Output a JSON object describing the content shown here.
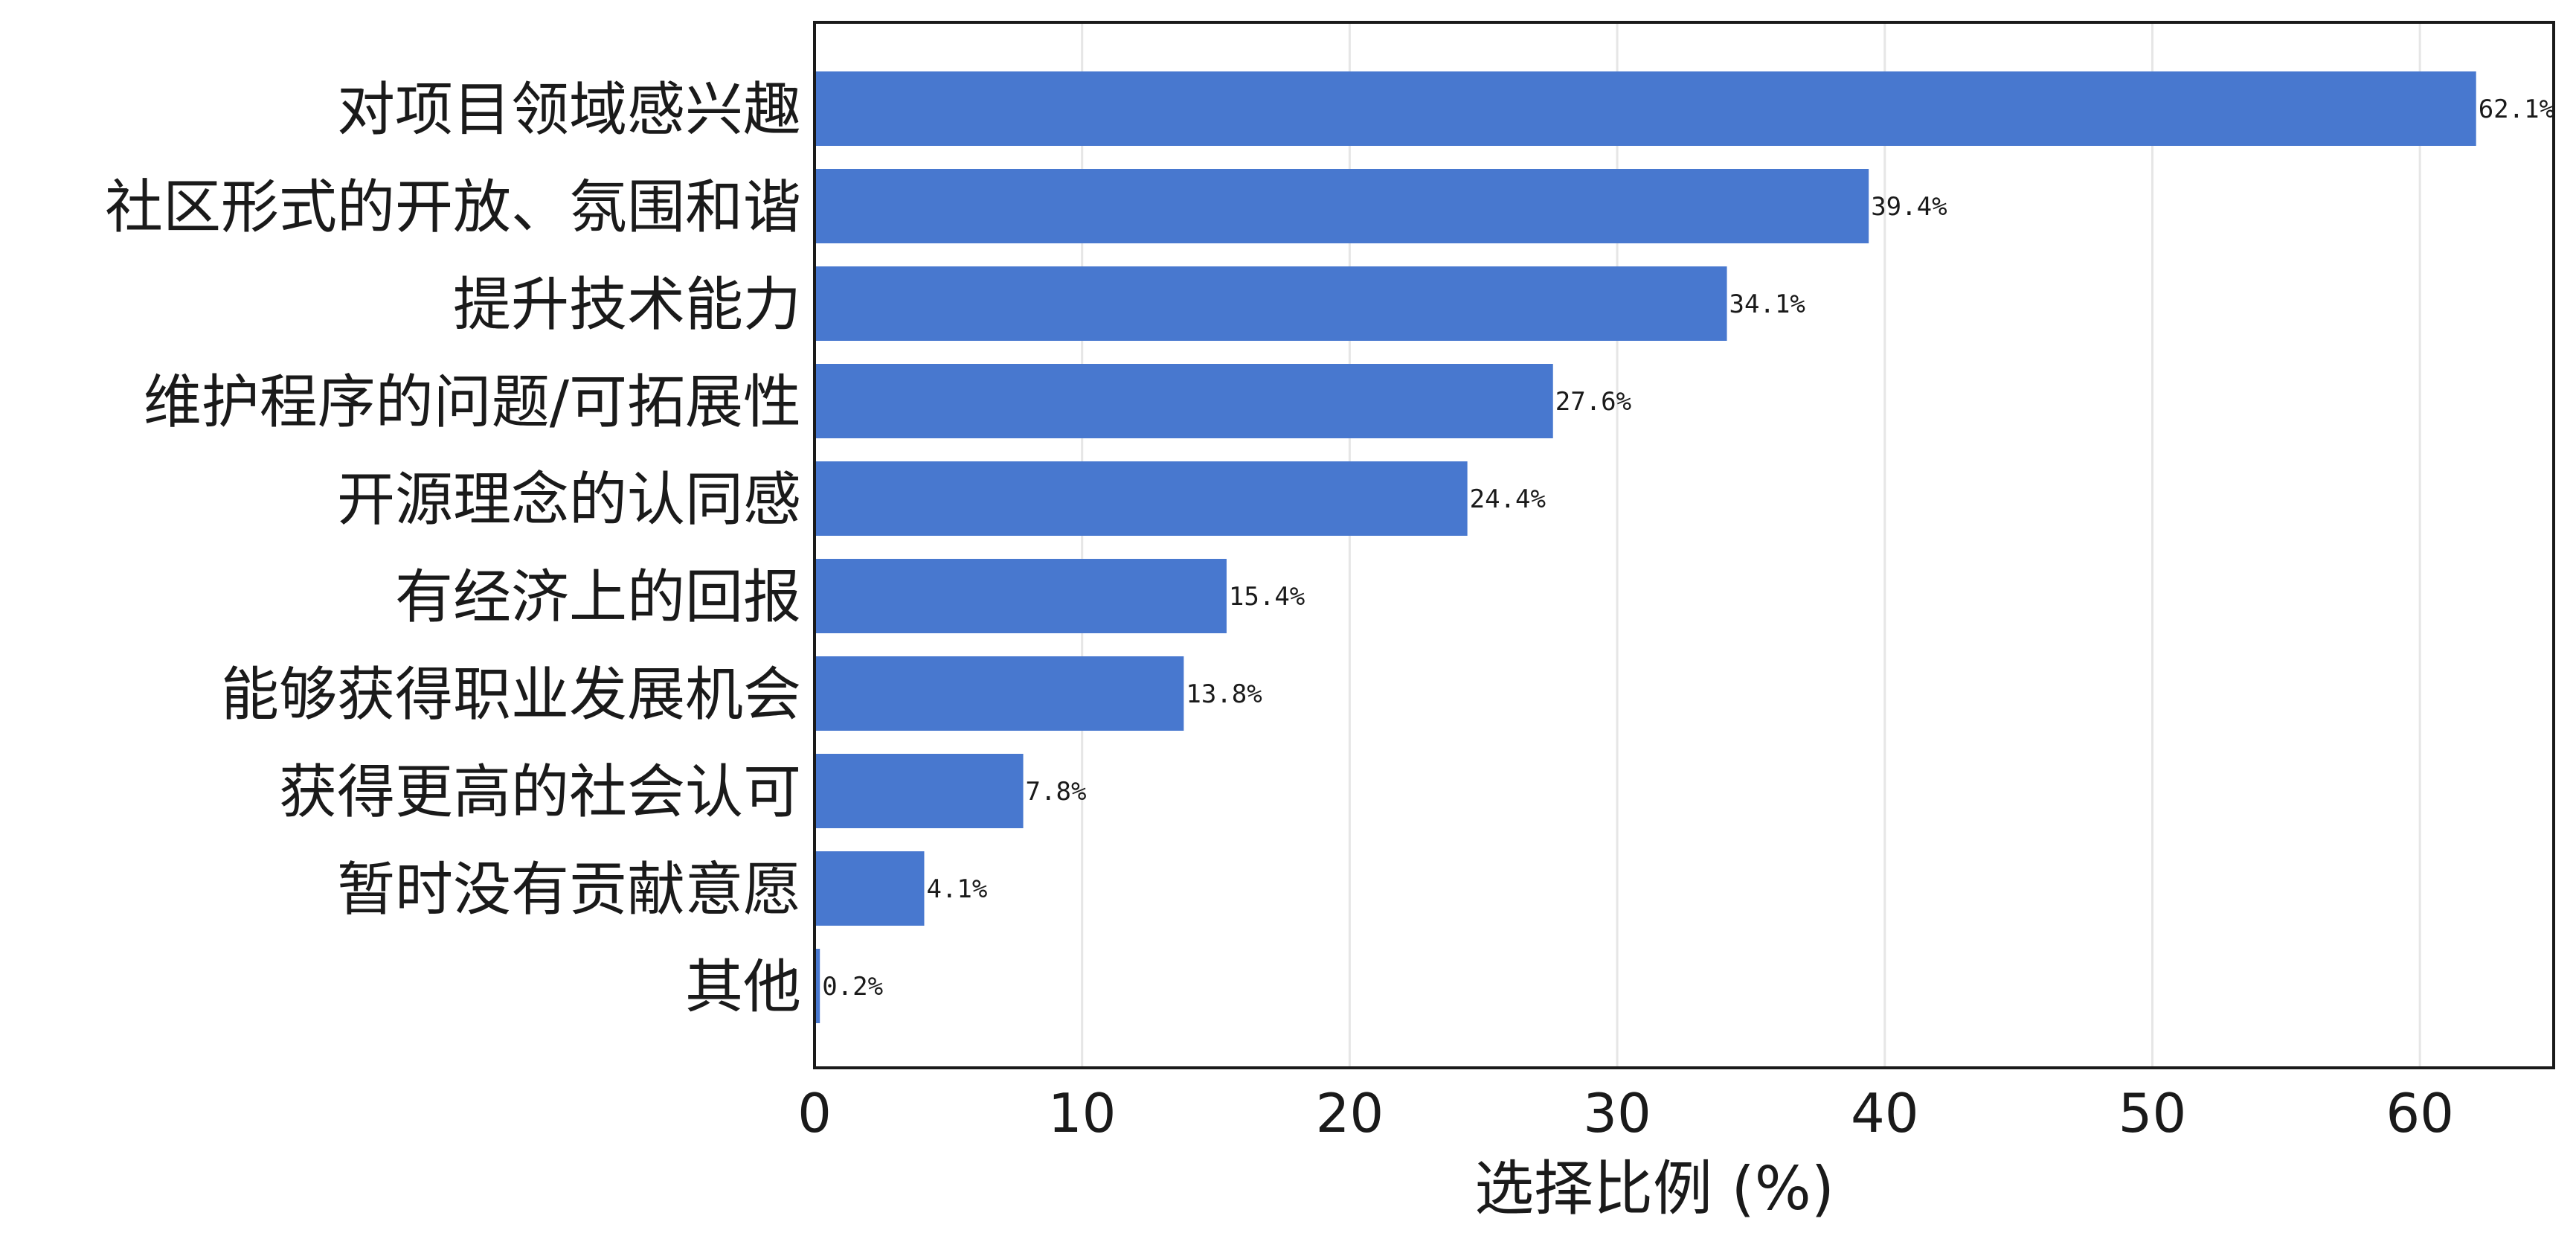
{
  "chart_data": {
    "type": "bar",
    "orientation": "horizontal",
    "categories": [
      "对项目领域感兴趣",
      "社区形式的开放、氛围和谐",
      "提升技术能力",
      "维护程序的问题/可拓展性",
      "开源理念的认同感",
      "有经济上的回报",
      "能够获得职业发展机会",
      "获得更高的社会认可",
      "暂时没有贡献意愿",
      "其他"
    ],
    "values": [
      62.1,
      39.4,
      34.1,
      27.6,
      24.4,
      15.4,
      13.8,
      7.8,
      4.1,
      0.2
    ],
    "value_labels": [
      "62.1%",
      "39.4%",
      "34.1%",
      "27.6%",
      "24.4%",
      "15.4%",
      "13.8%",
      "7.8%",
      "4.1%",
      "0.2%"
    ],
    "xlabel": "选择比例 (%)",
    "ylabel": "",
    "title": "",
    "xlim": [
      0,
      65
    ],
    "xticks": [
      0,
      10,
      20,
      30,
      40,
      50,
      60
    ],
    "xtick_labels": [
      "0",
      "10",
      "20",
      "30",
      "40",
      "50",
      "60"
    ],
    "grid": "vertical",
    "legend": "none",
    "colors": {
      "bar": "#4878cf",
      "grid": "#e6e6e6",
      "axis": "#1a1a1a",
      "background": "#ffffff"
    }
  }
}
